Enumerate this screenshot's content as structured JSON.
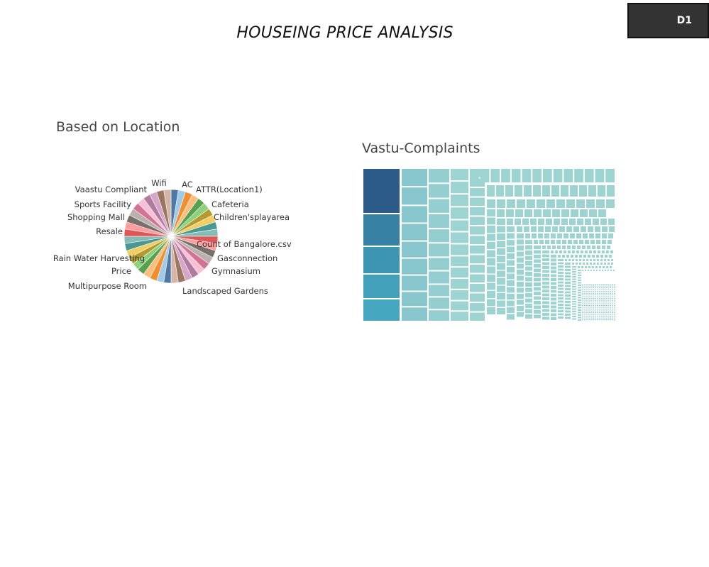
{
  "header": {
    "title": "HOUSEING PRICE ANALYSIS",
    "sheet_tab": "D1"
  },
  "colors": {
    "treemap_dark": "#2c5b8a",
    "treemap_mid": "#3c95b3",
    "treemap_light": "#9dd3d0",
    "tab_background": "#333333"
  },
  "chart_data": [
    {
      "type": "pie",
      "title": "Based on Location",
      "slice_count": 40,
      "labels": [
        "Wifi",
        "AC",
        "ATTR(Location1)",
        "Cafeteria",
        "Children'splayarea",
        "Count of Bangalore.csv",
        "Gasconnection",
        "Gymnasium",
        "Landscaped Gardens",
        "Multipurpose Room",
        "Price",
        "Rain Water Harvesting",
        "Resale",
        "Shopping Mall",
        "Sports Facility",
        "Vaastu Compliant"
      ],
      "palette": [
        "#4e79a7",
        "#a0cbe8",
        "#f28e2b",
        "#ffbe7d",
        "#59a14f",
        "#8cd17d",
        "#b6992d",
        "#f1ce63",
        "#499894",
        "#86bcb6",
        "#e15759",
        "#ff9d9a",
        "#79706e",
        "#bab0ac",
        "#d37295",
        "#fabfd2",
        "#b07aa1",
        "#d4a6c8",
        "#9d7660",
        "#d7b5a6"
      ]
    },
    {
      "type": "treemap",
      "title": "Vastu-Complaints",
      "legend": false
    }
  ]
}
